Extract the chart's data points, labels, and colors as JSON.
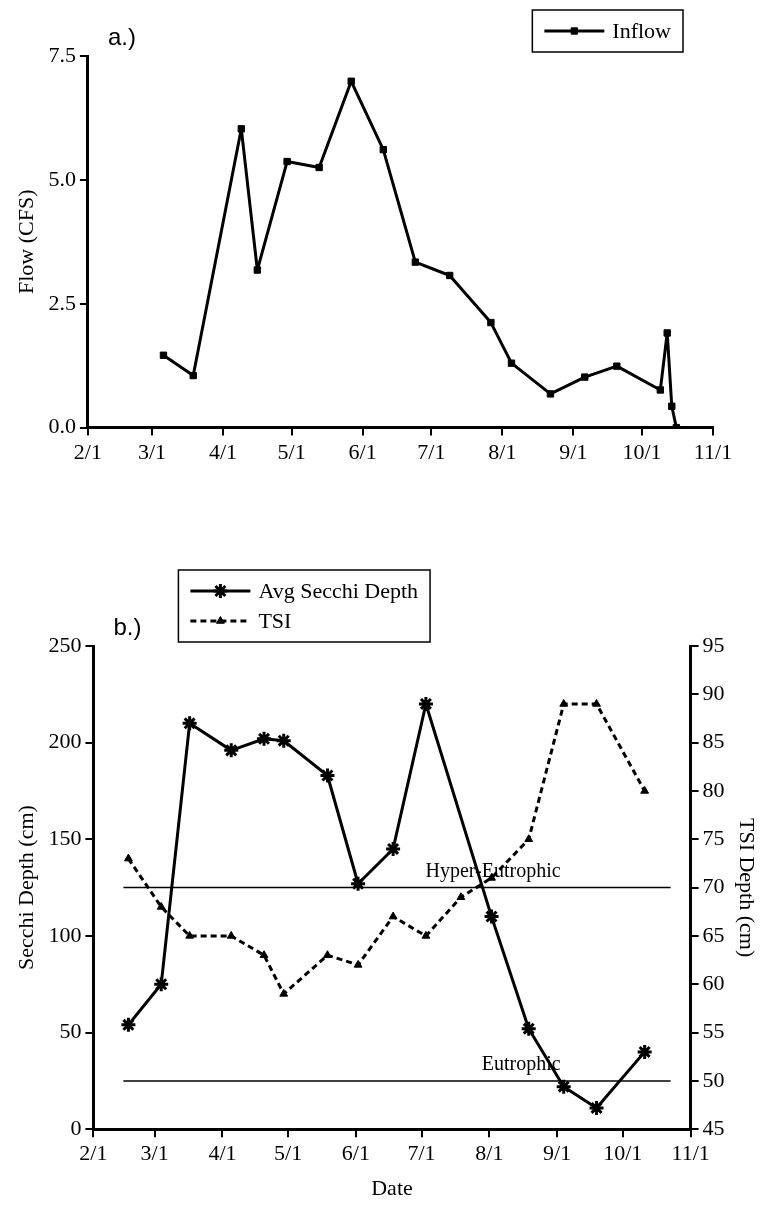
{
  "chart_data": [
    {
      "type": "line",
      "annotations": [
        "a.)"
      ],
      "ylabel": "Flow (CFS)",
      "x": [
        "--03-06",
        "--03-19",
        "--04-09",
        "--04-16",
        "--04-29",
        "--05-13",
        "--05-27",
        "--06-10",
        "--06-24",
        "--07-09",
        "--07-27",
        "--08-05",
        "--08-22",
        "--09-06",
        "--09-20",
        "--10-09",
        "--10-12",
        "--10-14",
        "--10-16"
      ],
      "series": [
        {
          "name": "Inflow",
          "color": "#000000",
          "values": [
            1.46,
            1.05,
            6.03,
            3.18,
            5.37,
            5.25,
            6.99,
            5.61,
            3.34,
            3.07,
            2.12,
            1.3,
            0.68,
            1.02,
            1.24,
            0.76,
            1.91,
            0.43,
            0.0
          ]
        }
      ],
      "xlim": [
        "--02-01",
        "--11-01"
      ],
      "xticks": [
        {
          "value": "--02-01",
          "label": "2/1"
        },
        {
          "value": "--03-01",
          "label": "3/1"
        },
        {
          "value": "--04-01",
          "label": "4/1"
        },
        {
          "value": "--05-01",
          "label": "5/1"
        },
        {
          "value": "--06-01",
          "label": "6/1"
        },
        {
          "value": "--07-01",
          "label": "7/1"
        },
        {
          "value": "--08-01",
          "label": "8/1"
        },
        {
          "value": "--09-01",
          "label": "9/1"
        },
        {
          "value": "--10-01",
          "label": "10/1"
        },
        {
          "value": "--11-01",
          "label": "11/1"
        }
      ],
      "ylim": [
        0,
        7.5
      ],
      "yticks": [
        {
          "value": 0,
          "label": "0.0"
        },
        {
          "value": 2.5,
          "label": "2.5"
        },
        {
          "value": 5,
          "label": "5.0"
        },
        {
          "value": 7.5,
          "label": "7.5"
        }
      ],
      "grid": false,
      "legend": "top right",
      "marker": "square",
      "line_style": "solid"
    },
    {
      "type": "line",
      "annotations": [
        "b.)"
      ],
      "xlabel": "Date",
      "ylabel": "Secchi Depth (cm)",
      "y2label": "TSI Depth (cm)",
      "x": [
        "--02-17",
        "--03-04",
        "--03-17",
        "--04-05",
        "--04-20",
        "--04-29",
        "--05-19",
        "--06-02",
        "--06-18",
        "--07-03",
        "--08-02",
        "--08-19",
        "--09-04",
        "--09-19",
        "--10-11"
      ],
      "series": [
        {
          "name": "Avg Secchi Depth",
          "color": "#000000",
          "marker": "cross",
          "line_style": "solid",
          "values": [
            54,
            75,
            210,
            196,
            202,
            201,
            183,
            127,
            145,
            220,
            110,
            52,
            22,
            11,
            40
          ]
        },
        {
          "name": "TSI",
          "color": "#000000",
          "marker": "triangle",
          "line_style": "dashed",
          "axis": "y2",
          "x": [
            "--02-17",
            "--03-04",
            "--03-17",
            "--04-05",
            "--04-20",
            "--04-29",
            "--05-19",
            "--06-02",
            "--06-18",
            "--07-03",
            "--07-19",
            "--08-02",
            "--08-19",
            "--09-04",
            "--09-19",
            "--10-11"
          ],
          "values": [
            73,
            68,
            65,
            65,
            63,
            59,
            63,
            62,
            67,
            65,
            69,
            71,
            75,
            89,
            89,
            80
          ]
        }
      ],
      "xlim": [
        "--02-01",
        "--11-01"
      ],
      "xticks": [
        {
          "value": "--02-01",
          "label": "2/1"
        },
        {
          "value": "--03-01",
          "label": "3/1"
        },
        {
          "value": "--04-01",
          "label": "4/1"
        },
        {
          "value": "--05-01",
          "label": "5/1"
        },
        {
          "value": "--06-01",
          "label": "6/1"
        },
        {
          "value": "--07-01",
          "label": "7/1"
        },
        {
          "value": "--08-01",
          "label": "8/1"
        },
        {
          "value": "--09-01",
          "label": "9/1"
        },
        {
          "value": "--10-01",
          "label": "10/1"
        },
        {
          "value": "--11-01",
          "label": "11/1"
        }
      ],
      "ylim": [
        0,
        250
      ],
      "yticks": [
        0,
        50,
        100,
        150,
        200,
        250
      ],
      "y2lim": [
        45,
        95
      ],
      "y2ticks": [
        45,
        50,
        55,
        60,
        65,
        70,
        75,
        80,
        85,
        90,
        95
      ],
      "ref_lines": [
        {
          "axis": "y",
          "value": 125,
          "label": "Hyper-Eutrophic",
          "color": "#000000"
        },
        {
          "axis": "y",
          "value": 25,
          "label": "Eutrophic",
          "color": "#000000"
        }
      ],
      "grid": false,
      "legend": "top left"
    }
  ]
}
